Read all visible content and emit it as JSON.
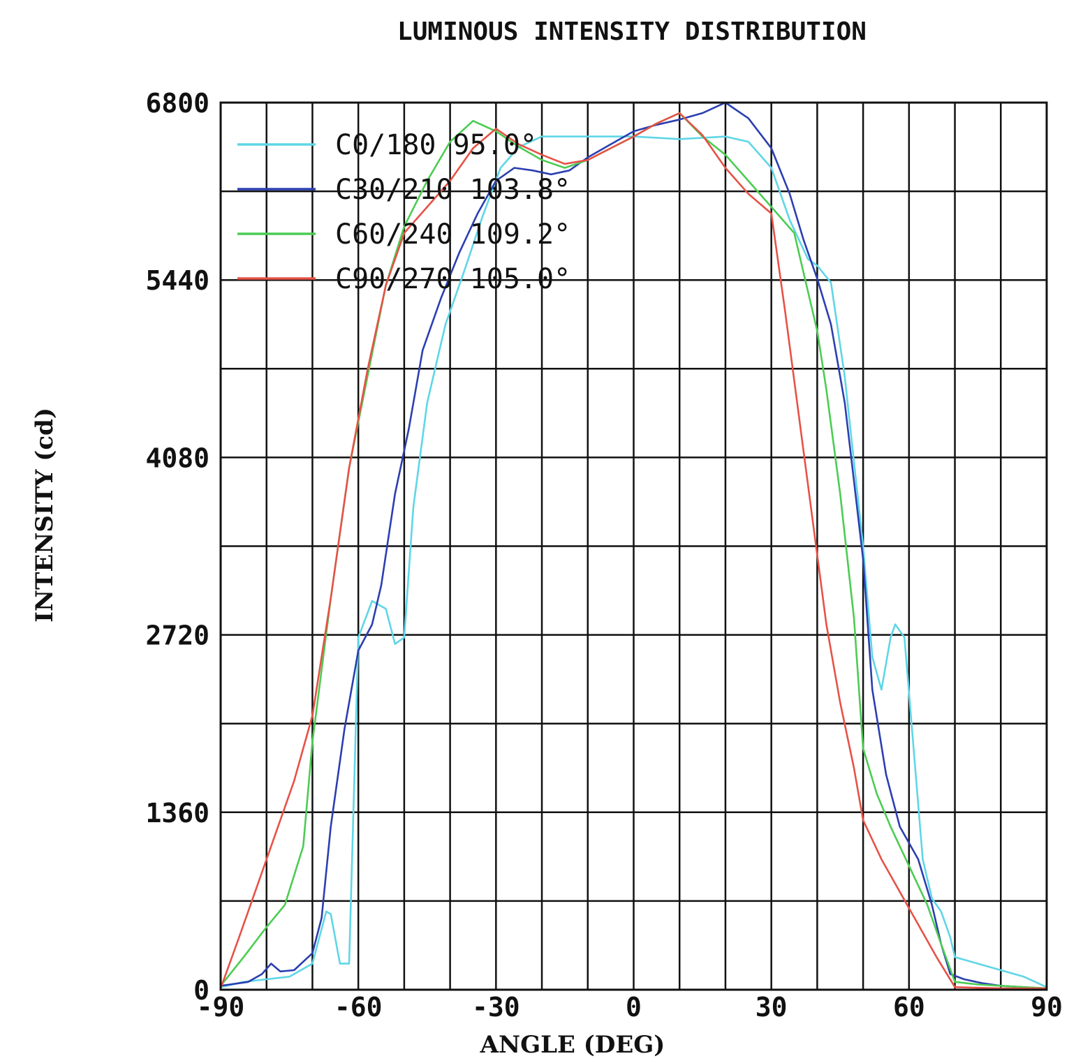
{
  "chart_data": {
    "type": "line",
    "title": "LUMINOUS  INTENSITY DISTRIBUTION",
    "xlabel": "ANGLE (DEG)",
    "ylabel": "INTENSITY (cd)",
    "xlim": [
      -90,
      90
    ],
    "ylim": [
      0,
      6800
    ],
    "x_ticks": [
      -90,
      -60,
      -30,
      0,
      30,
      60,
      90
    ],
    "x_tick_labels": [
      "-90",
      "-60",
      "-30",
      "0",
      "30",
      "60",
      "90"
    ],
    "y_ticks": [
      0,
      1360,
      2720,
      4080,
      5440,
      6800
    ],
    "y_tick_labels": [
      "0",
      "1360",
      "2720",
      "4080",
      "5440",
      "6800"
    ],
    "x_grid": [
      -90,
      -80,
      -70,
      -60,
      -50,
      -40,
      -30,
      -20,
      -10,
      0,
      10,
      20,
      30,
      40,
      50,
      60,
      70,
      80,
      90
    ],
    "y_grid": [
      0,
      680,
      1360,
      2040,
      2720,
      3400,
      4080,
      4760,
      5440,
      6120,
      6800
    ],
    "grid": true,
    "legend_position": "top-left",
    "series": [
      {
        "name": "C0/180 95.0°",
        "color": "#5fd6e6",
        "points": [
          [
            -90,
            20
          ],
          [
            -85,
            60
          ],
          [
            -80,
            80
          ],
          [
            -75,
            100
          ],
          [
            -70,
            200
          ],
          [
            -67,
            600
          ],
          [
            -66,
            580
          ],
          [
            -64,
            200
          ],
          [
            -62,
            200
          ],
          [
            -60,
            2700
          ],
          [
            -57,
            2980
          ],
          [
            -54,
            2920
          ],
          [
            -52,
            2650
          ],
          [
            -50,
            2700
          ],
          [
            -48,
            3700
          ],
          [
            -45,
            4500
          ],
          [
            -41,
            5100
          ],
          [
            -37,
            5500
          ],
          [
            -33,
            5920
          ],
          [
            -29,
            6300
          ],
          [
            -25,
            6460
          ],
          [
            -20,
            6540
          ],
          [
            -10,
            6540
          ],
          [
            0,
            6540
          ],
          [
            10,
            6520
          ],
          [
            20,
            6540
          ],
          [
            25,
            6500
          ],
          [
            30,
            6300
          ],
          [
            34,
            5900
          ],
          [
            38,
            5600
          ],
          [
            40,
            5550
          ],
          [
            43,
            5420
          ],
          [
            46,
            4700
          ],
          [
            50,
            3400
          ],
          [
            52,
            2550
          ],
          [
            54,
            2300
          ],
          [
            56,
            2700
          ],
          [
            57,
            2800
          ],
          [
            59,
            2700
          ],
          [
            61,
            1850
          ],
          [
            63,
            1000
          ],
          [
            65,
            700
          ],
          [
            67,
            600
          ],
          [
            68,
            500
          ],
          [
            69,
            400
          ],
          [
            70,
            250
          ],
          [
            75,
            200
          ],
          [
            80,
            150
          ],
          [
            85,
            100
          ],
          [
            90,
            20
          ]
        ]
      },
      {
        "name": "C30/210 103.8°",
        "color": "#2b3fb0",
        "points": [
          [
            -90,
            30
          ],
          [
            -86,
            50
          ],
          [
            -84,
            60
          ],
          [
            -81,
            120
          ],
          [
            -79,
            200
          ],
          [
            -77,
            140
          ],
          [
            -74,
            150
          ],
          [
            -70,
            280
          ],
          [
            -68,
            550
          ],
          [
            -66,
            1250
          ],
          [
            -63,
            2000
          ],
          [
            -60,
            2600
          ],
          [
            -57,
            2800
          ],
          [
            -55,
            3100
          ],
          [
            -52,
            3800
          ],
          [
            -49,
            4300
          ],
          [
            -46,
            4900
          ],
          [
            -42,
            5300
          ],
          [
            -38,
            5650
          ],
          [
            -34,
            5950
          ],
          [
            -30,
            6200
          ],
          [
            -26,
            6300
          ],
          [
            -22,
            6280
          ],
          [
            -18,
            6250
          ],
          [
            -14,
            6280
          ],
          [
            -10,
            6380
          ],
          [
            -5,
            6480
          ],
          [
            0,
            6580
          ],
          [
            5,
            6630
          ],
          [
            10,
            6670
          ],
          [
            15,
            6720
          ],
          [
            20,
            6800
          ],
          [
            25,
            6680
          ],
          [
            30,
            6450
          ],
          [
            34,
            6100
          ],
          [
            37,
            5750
          ],
          [
            40,
            5450
          ],
          [
            43,
            5100
          ],
          [
            46,
            4500
          ],
          [
            48,
            3900
          ],
          [
            50,
            3300
          ],
          [
            52,
            2300
          ],
          [
            55,
            1650
          ],
          [
            58,
            1250
          ],
          [
            62,
            1000
          ],
          [
            65,
            650
          ],
          [
            67,
            350
          ],
          [
            69,
            120
          ],
          [
            72,
            80
          ],
          [
            76,
            50
          ],
          [
            80,
            30
          ],
          [
            85,
            20
          ],
          [
            90,
            10
          ]
        ]
      },
      {
        "name": "C60/240 109.2°",
        "color": "#4ccc52",
        "points": [
          [
            -90,
            30
          ],
          [
            -85,
            250
          ],
          [
            -80,
            480
          ],
          [
            -76,
            650
          ],
          [
            -72,
            1100
          ],
          [
            -70,
            1900
          ],
          [
            -66,
            3000
          ],
          [
            -62,
            4000
          ],
          [
            -58,
            4700
          ],
          [
            -54,
            5400
          ],
          [
            -50,
            5850
          ],
          [
            -45,
            6200
          ],
          [
            -40,
            6500
          ],
          [
            -35,
            6660
          ],
          [
            -30,
            6580
          ],
          [
            -25,
            6460
          ],
          [
            -20,
            6360
          ],
          [
            -15,
            6300
          ],
          [
            -10,
            6360
          ],
          [
            -5,
            6450
          ],
          [
            0,
            6540
          ],
          [
            5,
            6640
          ],
          [
            10,
            6720
          ],
          [
            15,
            6540
          ],
          [
            20,
            6400
          ],
          [
            25,
            6200
          ],
          [
            30,
            6000
          ],
          [
            35,
            5800
          ],
          [
            38,
            5350
          ],
          [
            40,
            5050
          ],
          [
            42,
            4600
          ],
          [
            45,
            3800
          ],
          [
            48,
            2850
          ],
          [
            50,
            1850
          ],
          [
            53,
            1500
          ],
          [
            56,
            1250
          ],
          [
            60,
            950
          ],
          [
            64,
            650
          ],
          [
            67,
            350
          ],
          [
            70,
            60
          ],
          [
            75,
            40
          ],
          [
            80,
            30
          ],
          [
            85,
            20
          ],
          [
            90,
            10
          ]
        ]
      },
      {
        "name": "C90/270 105.0°",
        "color": "#e65247",
        "points": [
          [
            -90,
            10
          ],
          [
            -86,
            400
          ],
          [
            -82,
            800
          ],
          [
            -78,
            1200
          ],
          [
            -74,
            1600
          ],
          [
            -70,
            2100
          ],
          [
            -66,
            3000
          ],
          [
            -62,
            4000
          ],
          [
            -58,
            4750
          ],
          [
            -54,
            5400
          ],
          [
            -50,
            5800
          ],
          [
            -45,
            6000
          ],
          [
            -40,
            6200
          ],
          [
            -35,
            6450
          ],
          [
            -30,
            6600
          ],
          [
            -25,
            6480
          ],
          [
            -20,
            6400
          ],
          [
            -15,
            6330
          ],
          [
            -10,
            6360
          ],
          [
            -5,
            6450
          ],
          [
            0,
            6540
          ],
          [
            5,
            6640
          ],
          [
            10,
            6720
          ],
          [
            15,
            6550
          ],
          [
            20,
            6300
          ],
          [
            25,
            6100
          ],
          [
            30,
            5950
          ],
          [
            33,
            5200
          ],
          [
            36,
            4400
          ],
          [
            39,
            3600
          ],
          [
            42,
            2800
          ],
          [
            45,
            2200
          ],
          [
            48,
            1700
          ],
          [
            50,
            1300
          ],
          [
            54,
            1000
          ],
          [
            58,
            750
          ],
          [
            62,
            500
          ],
          [
            66,
            250
          ],
          [
            70,
            20
          ],
          [
            75,
            15
          ],
          [
            80,
            10
          ],
          [
            85,
            10
          ],
          [
            90,
            10
          ]
        ]
      }
    ]
  }
}
